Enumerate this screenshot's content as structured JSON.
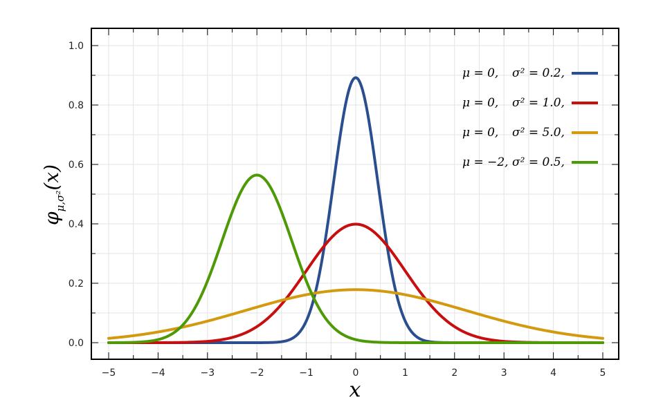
{
  "chart_data": {
    "type": "line",
    "title": "",
    "xlabel": "x",
    "ylabel": {
      "main": "φ",
      "subscript": "μ,σ²",
      "arg": "(x)"
    },
    "xlim": [
      -5,
      5
    ],
    "ylim": [
      0,
      1.05
    ],
    "x_ticks": [
      -5,
      -4,
      -3,
      -2,
      -1,
      0,
      1,
      2,
      3,
      4,
      5
    ],
    "x_tick_labels": [
      "−5",
      "−4",
      "−3",
      "−2",
      "−1",
      "0",
      "1",
      "2",
      "3",
      "4",
      "5"
    ],
    "y_ticks": [
      0,
      0.2,
      0.4,
      0.6,
      0.8,
      1.0
    ],
    "y_tick_labels": [
      "0.0",
      "0.2",
      "0.4",
      "0.6",
      "0.8",
      "1.0"
    ],
    "grid": true,
    "legend_position": "top-right",
    "series": [
      {
        "mu": 0,
        "variance": 0.2,
        "color": "#2b4f8e",
        "legend": {
          "mu_text": "μ = 0,",
          "sigma_text": "σ² = 0.2,"
        }
      },
      {
        "mu": 0,
        "variance": 1.0,
        "color": "#c80f0f",
        "legend": {
          "mu_text": "μ = 0,",
          "sigma_text": "σ² = 1.0,"
        }
      },
      {
        "mu": 0,
        "variance": 5.0,
        "color": "#d49a0f",
        "legend": {
          "mu_text": "μ = 0,",
          "sigma_text": "σ² = 5.0,"
        }
      },
      {
        "mu": -2,
        "variance": 0.5,
        "color": "#4e9a06",
        "legend": {
          "mu_text": "μ = −2,",
          "sigma_text": "σ² = 0.5,"
        }
      }
    ]
  }
}
